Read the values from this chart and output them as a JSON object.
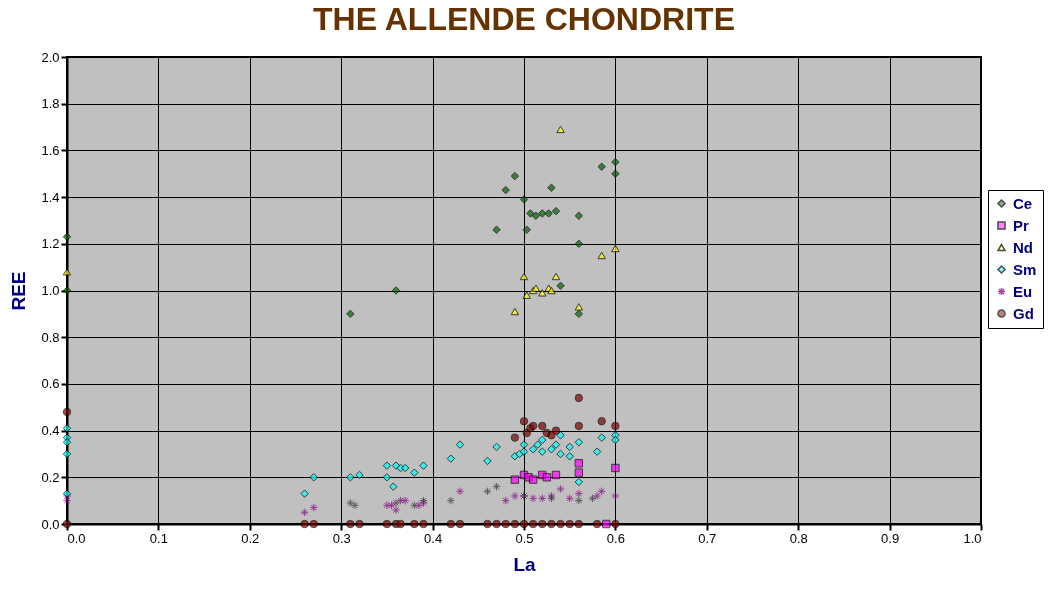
{
  "chart_data": {
    "type": "scatter",
    "title": "THE ALLENDE CHONDRITE",
    "xlabel": "La",
    "ylabel": "REE",
    "xlim": [
      0,
      1
    ],
    "xticks": [
      {
        "value": 0,
        "label": "0.0"
      },
      0.1,
      0.2,
      0.3,
      0.4,
      0.5,
      0.6,
      0.7,
      0.8,
      0.9,
      {
        "value": 1,
        "label": "1.0"
      }
    ],
    "ylim": [
      0,
      2
    ],
    "yticks": [
      {
        "value": 0,
        "label": "0.0"
      },
      0.2,
      0.4,
      0.6,
      0.8,
      {
        "value": 1,
        "label": "1.0"
      },
      1.2,
      1.4,
      1.6,
      1.8,
      {
        "value": 2,
        "label": "2.0"
      }
    ],
    "grid": true,
    "legend": "right",
    "series": [
      {
        "name": "Ce",
        "color": "#006600",
        "marker": "diamond",
        "x": [
          0,
          0,
          0.31,
          0.36,
          0.47,
          0.48,
          0.49,
          0.5,
          0.503,
          0.507,
          0.513,
          0.52,
          0.527,
          0.53,
          0.535,
          0.54,
          0.56,
          0.56,
          0.56,
          0.585,
          0.6,
          0.6
        ],
        "values": [
          1.23,
          1.0,
          0.9,
          1.0,
          1.26,
          1.43,
          1.49,
          1.39,
          1.26,
          1.33,
          1.32,
          1.33,
          1.33,
          1.44,
          1.34,
          1.02,
          1.32,
          1.2,
          0.9,
          1.53,
          1.55,
          1.5
        ]
      },
      {
        "name": "Pr",
        "color": "#ff00ff",
        "marker": "square",
        "x": [
          0.49,
          0.5,
          0.505,
          0.51,
          0.52,
          0.525,
          0.535,
          0.56,
          0.56,
          0.6,
          0.59
        ],
        "values": [
          0.19,
          0.21,
          0.2,
          0.19,
          0.21,
          0.2,
          0.21,
          0.26,
          0.22,
          0.24,
          0
        ]
      },
      {
        "name": "Nd",
        "color": "#ffff00",
        "marker": "triangle",
        "x": [
          0,
          0.49,
          0.5,
          0.503,
          0.51,
          0.513,
          0.52,
          0.527,
          0.53,
          0.535,
          0.54,
          0.56,
          0.585,
          0.6
        ],
        "values": [
          1.08,
          0.91,
          1.06,
          0.98,
          1.0,
          1.01,
          0.99,
          1.01,
          1.0,
          1.06,
          1.69,
          0.93,
          1.15,
          1.18
        ]
      },
      {
        "name": "Sm",
        "color": "#00ffff",
        "marker": "diamond",
        "x": [
          0,
          0,
          0,
          0,
          0,
          0.26,
          0.27,
          0.31,
          0.32,
          0.35,
          0.35,
          0.357,
          0.36,
          0.365,
          0.37,
          0.38,
          0.39,
          0.42,
          0.43,
          0.46,
          0.47,
          0.49,
          0.495,
          0.5,
          0.5,
          0.51,
          0.515,
          0.52,
          0.52,
          0.53,
          0.535,
          0.54,
          0.54,
          0.55,
          0.55,
          0.56,
          0.56,
          0.58,
          0.585,
          0.6,
          0.6
        ],
        "values": [
          0.41,
          0.37,
          0.35,
          0.3,
          0.13,
          0.13,
          0.2,
          0.2,
          0.21,
          0.25,
          0.2,
          0.16,
          0.25,
          0.24,
          0.24,
          0.22,
          0.25,
          0.28,
          0.34,
          0.27,
          0.33,
          0.29,
          0.3,
          0.31,
          0.34,
          0.32,
          0.34,
          0.31,
          0.36,
          0.32,
          0.34,
          0.3,
          0.38,
          0.33,
          0.29,
          0.35,
          0.18,
          0.31,
          0.37,
          0.38,
          0.36
        ]
      },
      {
        "name": "Eu",
        "color": "#800080",
        "marker": "cross",
        "x": [
          0,
          0,
          0.26,
          0.27,
          0.35,
          0.355,
          0.36,
          0.365,
          0.37,
          0.385,
          0.39,
          0.43,
          0.48,
          0.49,
          0.5,
          0.51,
          0.52,
          0.53,
          0.54,
          0.55,
          0.56,
          0.58,
          0.585,
          0.6
        ],
        "values": [
          0.12,
          0.1,
          0.05,
          0.07,
          0.08,
          0.08,
          0.06,
          0.1,
          0.1,
          0.08,
          0.09,
          0.14,
          0.1,
          0.12,
          0.12,
          0.11,
          0.11,
          0.12,
          0.15,
          0.11,
          0.13,
          0.12,
          0.14,
          0.12
        ]
      },
      {
        "name": "Gd",
        "color": "#800000",
        "marker": "circle",
        "x": [
          0,
          0,
          0.26,
          0.27,
          0.31,
          0.32,
          0.35,
          0.36,
          0.365,
          0.38,
          0.39,
          0.42,
          0.43,
          0.46,
          0.47,
          0.48,
          0.49,
          0.5,
          0.51,
          0.52,
          0.53,
          0.54,
          0.55,
          0.56,
          0.58,
          0.6,
          0.49,
          0.5,
          0.503,
          0.507,
          0.51,
          0.52,
          0.525,
          0.53,
          0.535,
          0.56,
          0.56,
          0.585,
          0.6
        ],
        "values": [
          0.48,
          0,
          0,
          0,
          0,
          0,
          0,
          0,
          0,
          0,
          0,
          0,
          0,
          0,
          0,
          0,
          0,
          0,
          0,
          0,
          0,
          0,
          0,
          0,
          0,
          0,
          0.37,
          0.44,
          0.39,
          0.41,
          0.42,
          0.42,
          0.39,
          0.38,
          0.4,
          0.54,
          0.42,
          0.44,
          0.42
        ]
      },
      {
        "color": "#333333",
        "marker": "cross",
        "x": [
          0.31,
          0.315,
          0.36,
          0.38,
          0.39,
          0.42,
          0.46,
          0.47,
          0.5,
          0.53,
          0.56,
          0.575
        ],
        "values": [
          0.09,
          0.08,
          0.09,
          0.08,
          0.1,
          0.1,
          0.14,
          0.16,
          0.12,
          0.11,
          0.1,
          0.11
        ]
      }
    ]
  }
}
